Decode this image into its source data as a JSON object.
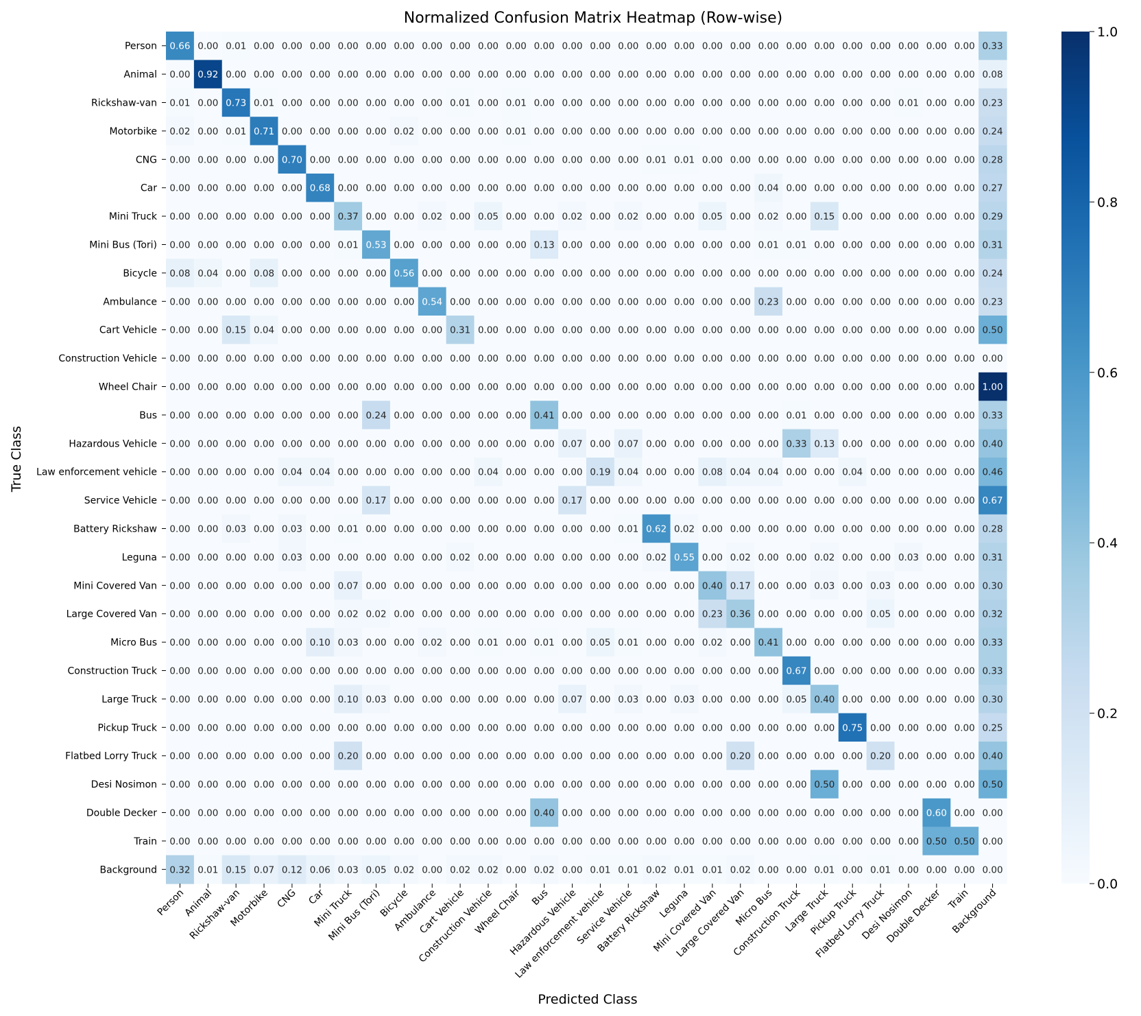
{
  "chart_data": {
    "type": "heatmap",
    "title": "Normalized Confusion Matrix Heatmap (Row-wise)",
    "xlabel": "Predicted Class",
    "ylabel": "True Class",
    "classes": [
      "Person",
      "Animal",
      "Rickshaw-van",
      "Motorbike",
      "CNG",
      "Car",
      "Mini Truck",
      "Mini Bus (Tori)",
      "Bicycle",
      "Ambulance",
      "Cart Vehicle",
      "Construction Vehicle",
      "Wheel Chair",
      "Bus",
      "Hazardous Vehicle",
      "Law enforcement vehicle",
      "Service Vehicle",
      "Battery Rickshaw",
      "Leguna",
      "Mini Covered Van",
      "Large Covered Van",
      "Micro Bus",
      "Construction Truck",
      "Large Truck",
      "Pickup Truck",
      "Flatbed Lorry Truck",
      "Desi Nosimon",
      "Double Decker",
      "Train",
      "Background"
    ],
    "values": [
      [
        0.66,
        0.0,
        0.01,
        0.0,
        0.0,
        0.0,
        0.0,
        0.0,
        0.0,
        0.0,
        0.0,
        0.0,
        0.0,
        0.0,
        0.0,
        0.0,
        0.0,
        0.0,
        0.0,
        0.0,
        0.0,
        0.0,
        0.0,
        0.0,
        0.0,
        0.0,
        0.0,
        0.0,
        0.0,
        0.33
      ],
      [
        0.0,
        0.92,
        0.0,
        0.0,
        0.0,
        0.0,
        0.0,
        0.0,
        0.0,
        0.0,
        0.0,
        0.0,
        0.0,
        0.0,
        0.0,
        0.0,
        0.0,
        0.0,
        0.0,
        0.0,
        0.0,
        0.0,
        0.0,
        0.0,
        0.0,
        0.0,
        0.0,
        0.0,
        0.0,
        0.08
      ],
      [
        0.01,
        0.0,
        0.73,
        0.01,
        0.0,
        0.0,
        0.0,
        0.0,
        0.0,
        0.0,
        0.01,
        0.0,
        0.01,
        0.0,
        0.0,
        0.0,
        0.0,
        0.0,
        0.0,
        0.0,
        0.0,
        0.0,
        0.0,
        0.0,
        0.0,
        0.0,
        0.01,
        0.0,
        0.0,
        0.23
      ],
      [
        0.02,
        0.0,
        0.01,
        0.71,
        0.0,
        0.0,
        0.0,
        0.0,
        0.02,
        0.0,
        0.0,
        0.0,
        0.01,
        0.0,
        0.0,
        0.0,
        0.0,
        0.0,
        0.0,
        0.0,
        0.0,
        0.0,
        0.0,
        0.0,
        0.0,
        0.0,
        0.0,
        0.0,
        0.0,
        0.24
      ],
      [
        0.0,
        0.0,
        0.0,
        0.0,
        0.7,
        0.0,
        0.0,
        0.0,
        0.0,
        0.0,
        0.0,
        0.0,
        0.0,
        0.0,
        0.0,
        0.0,
        0.0,
        0.01,
        0.01,
        0.0,
        0.0,
        0.0,
        0.0,
        0.0,
        0.0,
        0.0,
        0.0,
        0.0,
        0.0,
        0.28
      ],
      [
        0.0,
        0.0,
        0.0,
        0.0,
        0.0,
        0.68,
        0.0,
        0.0,
        0.0,
        0.0,
        0.0,
        0.0,
        0.0,
        0.0,
        0.0,
        0.0,
        0.0,
        0.0,
        0.0,
        0.0,
        0.0,
        0.04,
        0.0,
        0.0,
        0.0,
        0.0,
        0.0,
        0.0,
        0.0,
        0.27
      ],
      [
        0.0,
        0.0,
        0.0,
        0.0,
        0.0,
        0.0,
        0.37,
        0.0,
        0.0,
        0.02,
        0.0,
        0.05,
        0.0,
        0.0,
        0.02,
        0.0,
        0.02,
        0.0,
        0.0,
        0.05,
        0.0,
        0.02,
        0.0,
        0.15,
        0.0,
        0.0,
        0.0,
        0.0,
        0.0,
        0.29
      ],
      [
        0.0,
        0.0,
        0.0,
        0.0,
        0.0,
        0.0,
        0.01,
        0.53,
        0.0,
        0.0,
        0.0,
        0.0,
        0.0,
        0.13,
        0.0,
        0.0,
        0.0,
        0.0,
        0.0,
        0.0,
        0.0,
        0.01,
        0.01,
        0.0,
        0.0,
        0.0,
        0.0,
        0.0,
        0.0,
        0.31
      ],
      [
        0.08,
        0.04,
        0.0,
        0.08,
        0.0,
        0.0,
        0.0,
        0.0,
        0.56,
        0.0,
        0.0,
        0.0,
        0.0,
        0.0,
        0.0,
        0.0,
        0.0,
        0.0,
        0.0,
        0.0,
        0.0,
        0.0,
        0.0,
        0.0,
        0.0,
        0.0,
        0.0,
        0.0,
        0.0,
        0.24
      ],
      [
        0.0,
        0.0,
        0.0,
        0.0,
        0.0,
        0.0,
        0.0,
        0.0,
        0.0,
        0.54,
        0.0,
        0.0,
        0.0,
        0.0,
        0.0,
        0.0,
        0.0,
        0.0,
        0.0,
        0.0,
        0.0,
        0.23,
        0.0,
        0.0,
        0.0,
        0.0,
        0.0,
        0.0,
        0.0,
        0.23
      ],
      [
        0.0,
        0.0,
        0.15,
        0.04,
        0.0,
        0.0,
        0.0,
        0.0,
        0.0,
        0.0,
        0.31,
        0.0,
        0.0,
        0.0,
        0.0,
        0.0,
        0.0,
        0.0,
        0.0,
        0.0,
        0.0,
        0.0,
        0.0,
        0.0,
        0.0,
        0.0,
        0.0,
        0.0,
        0.0,
        0.5
      ],
      [
        0.0,
        0.0,
        0.0,
        0.0,
        0.0,
        0.0,
        0.0,
        0.0,
        0.0,
        0.0,
        0.0,
        0.0,
        0.0,
        0.0,
        0.0,
        0.0,
        0.0,
        0.0,
        0.0,
        0.0,
        0.0,
        0.0,
        0.0,
        0.0,
        0.0,
        0.0,
        0.0,
        0.0,
        0.0,
        0.0
      ],
      [
        0.0,
        0.0,
        0.0,
        0.0,
        0.0,
        0.0,
        0.0,
        0.0,
        0.0,
        0.0,
        0.0,
        0.0,
        0.0,
        0.0,
        0.0,
        0.0,
        0.0,
        0.0,
        0.0,
        0.0,
        0.0,
        0.0,
        0.0,
        0.0,
        0.0,
        0.0,
        0.0,
        0.0,
        0.0,
        1.0
      ],
      [
        0.0,
        0.0,
        0.0,
        0.0,
        0.0,
        0.0,
        0.0,
        0.24,
        0.0,
        0.0,
        0.0,
        0.0,
        0.0,
        0.41,
        0.0,
        0.0,
        0.0,
        0.0,
        0.0,
        0.0,
        0.0,
        0.0,
        0.01,
        0.0,
        0.0,
        0.0,
        0.0,
        0.0,
        0.0,
        0.33
      ],
      [
        0.0,
        0.0,
        0.0,
        0.0,
        0.0,
        0.0,
        0.0,
        0.0,
        0.0,
        0.0,
        0.0,
        0.0,
        0.0,
        0.0,
        0.07,
        0.0,
        0.07,
        0.0,
        0.0,
        0.0,
        0.0,
        0.0,
        0.33,
        0.13,
        0.0,
        0.0,
        0.0,
        0.0,
        0.0,
        0.4
      ],
      [
        0.0,
        0.0,
        0.0,
        0.0,
        0.04,
        0.04,
        0.0,
        0.0,
        0.0,
        0.0,
        0.0,
        0.04,
        0.0,
        0.0,
        0.0,
        0.19,
        0.04,
        0.0,
        0.0,
        0.08,
        0.04,
        0.04,
        0.0,
        0.0,
        0.04,
        0.0,
        0.0,
        0.0,
        0.0,
        0.46
      ],
      [
        0.0,
        0.0,
        0.0,
        0.0,
        0.0,
        0.0,
        0.0,
        0.17,
        0.0,
        0.0,
        0.0,
        0.0,
        0.0,
        0.0,
        0.17,
        0.0,
        0.0,
        0.0,
        0.0,
        0.0,
        0.0,
        0.0,
        0.0,
        0.0,
        0.0,
        0.0,
        0.0,
        0.0,
        0.0,
        0.67
      ],
      [
        0.0,
        0.0,
        0.03,
        0.0,
        0.03,
        0.0,
        0.01,
        0.0,
        0.0,
        0.0,
        0.0,
        0.0,
        0.0,
        0.0,
        0.0,
        0.0,
        0.01,
        0.62,
        0.02,
        0.0,
        0.0,
        0.0,
        0.0,
        0.0,
        0.0,
        0.0,
        0.0,
        0.0,
        0.0,
        0.28
      ],
      [
        0.0,
        0.0,
        0.0,
        0.0,
        0.03,
        0.0,
        0.0,
        0.0,
        0.0,
        0.0,
        0.02,
        0.0,
        0.0,
        0.0,
        0.0,
        0.0,
        0.0,
        0.02,
        0.55,
        0.0,
        0.02,
        0.0,
        0.0,
        0.02,
        0.0,
        0.0,
        0.03,
        0.0,
        0.0,
        0.31
      ],
      [
        0.0,
        0.0,
        0.0,
        0.0,
        0.0,
        0.0,
        0.07,
        0.0,
        0.0,
        0.0,
        0.0,
        0.0,
        0.0,
        0.0,
        0.0,
        0.0,
        0.0,
        0.0,
        0.0,
        0.4,
        0.17,
        0.0,
        0.0,
        0.03,
        0.0,
        0.03,
        0.0,
        0.0,
        0.0,
        0.3
      ],
      [
        0.0,
        0.0,
        0.0,
        0.0,
        0.0,
        0.0,
        0.02,
        0.02,
        0.0,
        0.0,
        0.0,
        0.0,
        0.0,
        0.0,
        0.0,
        0.0,
        0.0,
        0.0,
        0.0,
        0.23,
        0.36,
        0.0,
        0.0,
        0.0,
        0.0,
        0.05,
        0.0,
        0.0,
        0.0,
        0.32
      ],
      [
        0.0,
        0.0,
        0.0,
        0.0,
        0.0,
        0.1,
        0.03,
        0.0,
        0.0,
        0.02,
        0.0,
        0.01,
        0.0,
        0.01,
        0.0,
        0.05,
        0.01,
        0.0,
        0.0,
        0.02,
        0.0,
        0.41,
        0.0,
        0.0,
        0.0,
        0.0,
        0.0,
        0.0,
        0.0,
        0.33
      ],
      [
        0.0,
        0.0,
        0.0,
        0.0,
        0.0,
        0.0,
        0.0,
        0.0,
        0.0,
        0.0,
        0.0,
        0.0,
        0.0,
        0.0,
        0.0,
        0.0,
        0.0,
        0.0,
        0.0,
        0.0,
        0.0,
        0.0,
        0.67,
        0.0,
        0.0,
        0.0,
        0.0,
        0.0,
        0.0,
        0.33
      ],
      [
        0.0,
        0.0,
        0.0,
        0.0,
        0.0,
        0.0,
        0.1,
        0.03,
        0.0,
        0.0,
        0.0,
        0.0,
        0.0,
        0.0,
        0.07,
        0.0,
        0.03,
        0.0,
        0.03,
        0.0,
        0.0,
        0.0,
        0.05,
        0.4,
        0.0,
        0.0,
        0.0,
        0.0,
        0.0,
        0.3
      ],
      [
        0.0,
        0.0,
        0.0,
        0.0,
        0.0,
        0.0,
        0.0,
        0.0,
        0.0,
        0.0,
        0.0,
        0.0,
        0.0,
        0.0,
        0.0,
        0.0,
        0.0,
        0.0,
        0.0,
        0.0,
        0.0,
        0.0,
        0.0,
        0.0,
        0.75,
        0.0,
        0.0,
        0.0,
        0.0,
        0.25
      ],
      [
        0.0,
        0.0,
        0.0,
        0.0,
        0.0,
        0.0,
        0.2,
        0.0,
        0.0,
        0.0,
        0.0,
        0.0,
        0.0,
        0.0,
        0.0,
        0.0,
        0.0,
        0.0,
        0.0,
        0.0,
        0.2,
        0.0,
        0.0,
        0.0,
        0.0,
        0.2,
        0.0,
        0.0,
        0.0,
        0.4
      ],
      [
        0.0,
        0.0,
        0.0,
        0.0,
        0.0,
        0.0,
        0.0,
        0.0,
        0.0,
        0.0,
        0.0,
        0.0,
        0.0,
        0.0,
        0.0,
        0.0,
        0.0,
        0.0,
        0.0,
        0.0,
        0.0,
        0.0,
        0.0,
        0.5,
        0.0,
        0.0,
        0.0,
        0.0,
        0.0,
        0.5
      ],
      [
        0.0,
        0.0,
        0.0,
        0.0,
        0.0,
        0.0,
        0.0,
        0.0,
        0.0,
        0.0,
        0.0,
        0.0,
        0.0,
        0.4,
        0.0,
        0.0,
        0.0,
        0.0,
        0.0,
        0.0,
        0.0,
        0.0,
        0.0,
        0.0,
        0.0,
        0.0,
        0.0,
        0.6,
        0.0,
        0.0
      ],
      [
        0.0,
        0.0,
        0.0,
        0.0,
        0.0,
        0.0,
        0.0,
        0.0,
        0.0,
        0.0,
        0.0,
        0.0,
        0.0,
        0.0,
        0.0,
        0.0,
        0.0,
        0.0,
        0.0,
        0.0,
        0.0,
        0.0,
        0.0,
        0.0,
        0.0,
        0.0,
        0.0,
        0.5,
        0.5,
        0.0
      ],
      [
        0.32,
        0.01,
        0.15,
        0.07,
        0.12,
        0.06,
        0.03,
        0.05,
        0.02,
        0.0,
        0.02,
        0.02,
        0.0,
        0.02,
        0.0,
        0.01,
        0.01,
        0.02,
        0.01,
        0.01,
        0.02,
        0.0,
        0.0,
        0.01,
        0.0,
        0.01,
        0.0,
        0.0,
        0.0,
        0.0
      ]
    ],
    "colorbar": {
      "range": [
        0,
        1
      ],
      "ticks": [
        "0.0",
        "0.2",
        "0.4",
        "0.6",
        "0.8",
        "1.0"
      ],
      "colormap": "Blues"
    }
  }
}
